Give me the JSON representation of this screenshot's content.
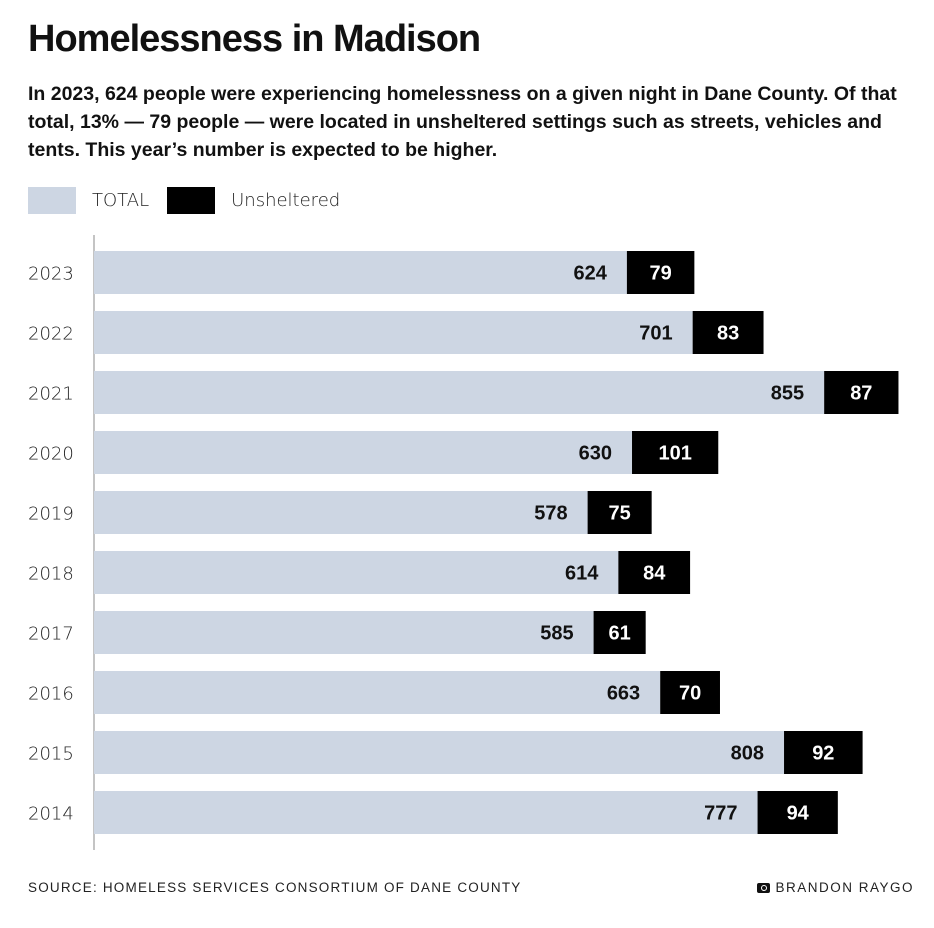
{
  "title": "Homelessness in Madison",
  "subtitle": "In 2023, 624 people were experiencing homelessness on a given night in Dane County. Of that total, 13% — 79 people — were located in unsheltered settings such as streets, vehicles and tents. This year’s number is expected to be higher.",
  "source": "SOURCE: HOMELESS SERVICES CONSORTIUM OF DANE COUNTY",
  "credit": "BRANDON RAYGO",
  "credit_icon": "camera-icon",
  "colors": {
    "total": "#cdd6e3",
    "unsheltered": "#000000"
  },
  "chart_data": {
    "type": "bar",
    "orientation": "horizontal",
    "stacking": "unsheltered segment appended after total",
    "categories": [
      "2023",
      "2022",
      "2021",
      "2020",
      "2019",
      "2018",
      "2017",
      "2016",
      "2015",
      "2014"
    ],
    "series": [
      {
        "name": "TOTAL",
        "values": [
          624,
          701,
          855,
          630,
          578,
          614,
          585,
          663,
          808,
          777
        ]
      },
      {
        "name": "Unsheltered",
        "values": [
          79,
          83,
          87,
          101,
          75,
          84,
          61,
          70,
          92,
          94
        ]
      }
    ],
    "legend": "top-left",
    "grid": false
  }
}
